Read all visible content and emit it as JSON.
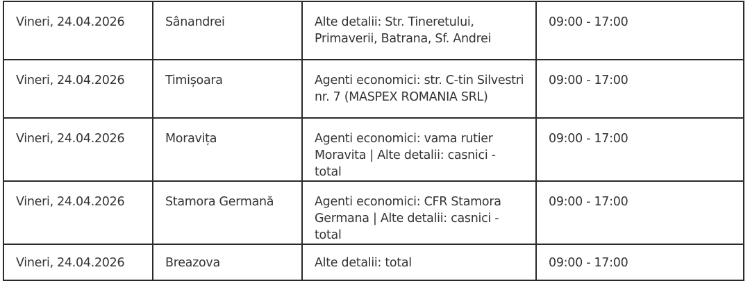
{
  "rows": [
    {
      "date": "Vineri, 24.04.2026",
      "locality": "Sânandrei",
      "details": "Alte detalii: Str. Tineretului, Primaverii, Batrana, Sf. Andrei",
      "interval": "09:00 - 17:00"
    },
    {
      "date": "Vineri, 24.04.2026",
      "locality": "Timișoara",
      "details": "Agenti economici: str. C-tin Silvestri nr. 7 (MASPEX ROMANIA SRL)",
      "interval": "09:00 - 17:00"
    },
    {
      "date": "Vineri, 24.04.2026",
      "locality": "Moravița",
      "details": "Agenti economici: vama rutier Moravita | Alte detalii: casnici - total",
      "interval": "09:00 - 17:00"
    },
    {
      "date": "Vineri, 24.04.2026",
      "locality": "Stamora Germană",
      "details": "Agenti economici: CFR Stamora Germana | Alte detalii: casnici - total",
      "interval": "09:00 - 17:00"
    },
    {
      "date": "Vineri, 24.04.2026",
      "locality": "Breazova",
      "details": "Alte detalii: total",
      "interval": "09:00 - 17:00"
    }
  ]
}
